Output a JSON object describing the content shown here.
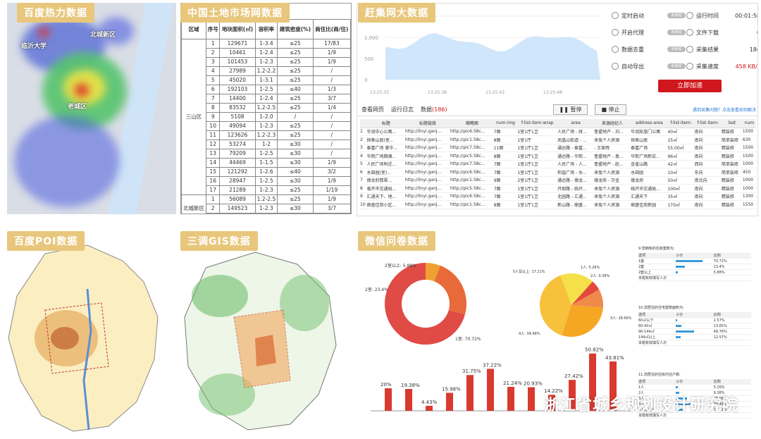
{
  "badges": {
    "heat": "百度热力数据",
    "land": "中国土地市场网数据",
    "crawl": "赶集网大数据",
    "poi": "百度POI数据",
    "gis": "三调GIS数据",
    "survey": "微信问卷数据"
  },
  "heat_labels": {
    "north": "北城新区",
    "uni": "临沂大学",
    "center": "老城区"
  },
  "land_table": {
    "headers": [
      "区域",
      "序号",
      "地块面积(㎡)",
      "容积率",
      "建筑密度(%)",
      "商住比(商/住)"
    ],
    "group1": "三山区",
    "group2": "北城新区",
    "rows1": [
      [
        "1",
        "129671",
        "1-3.4",
        "≤25",
        "17/83"
      ],
      [
        "2",
        "10461",
        "1-2.4",
        "≤25",
        "1/9"
      ],
      [
        "3",
        "101453",
        "1-2.3",
        "≤25",
        "1/9"
      ],
      [
        "4",
        "27989",
        "1.2-2.2",
        "≤25",
        "/"
      ],
      [
        "5",
        "45020",
        "1-3.1",
        "≤25",
        "/"
      ],
      [
        "6",
        "192103",
        "1-2.5",
        "≤40",
        "1/3"
      ],
      [
        "7",
        "14400",
        "1-2.4",
        "≤25",
        "3/7"
      ],
      [
        "8",
        "83532",
        "1.2-2.5",
        "≤25",
        "1/4"
      ],
      [
        "9",
        "5108",
        "1-2.0",
        "/",
        "/"
      ],
      [
        "10",
        "49094",
        "1-2.3",
        "≤25",
        "/"
      ],
      [
        "11",
        "123626",
        "1.2-2.3",
        "≤25",
        "/"
      ],
      [
        "12",
        "53274",
        "1-2",
        "≤30",
        "/"
      ],
      [
        "13",
        "79209",
        "1-2.5",
        "≤30",
        "/"
      ],
      [
        "14",
        "44469",
        "1-1.5",
        "≤30",
        "1/9"
      ],
      [
        "15",
        "121292",
        "1-2.6",
        "≤40",
        "3/2"
      ],
      [
        "16",
        "28947",
        "1-2.5",
        "≤30",
        "1/9"
      ],
      [
        "17",
        "21289",
        "1-2.3",
        "≤25",
        "1/19"
      ]
    ],
    "rows2": [
      [
        "1",
        "56089",
        "1.2-2.5",
        "≤25",
        "1/9"
      ],
      [
        "2",
        "149523",
        "1-2.3",
        "≤30",
        "3/7"
      ],
      [
        "3",
        "63766",
        "1-2.5",
        "≤25",
        "1/9"
      ]
    ]
  },
  "crawler": {
    "y_ticks": [
      "1,500",
      "1,000",
      "500",
      "0"
    ],
    "x_ticks": [
      "13:25:33",
      "13:25:38",
      "13:25:43",
      "13:25:48"
    ],
    "controls": [
      {
        "label": "定时启动",
        "toggle": "未启动"
      },
      {
        "label": "运行时间",
        "value": "00:01:58"
      },
      {
        "label": "开启代理",
        "toggle": "未启动"
      },
      {
        "label": "文件下载",
        "value": "0"
      },
      {
        "label": "数据去重",
        "toggle": "未启动"
      },
      {
        "label": "采集结果",
        "value": "186"
      },
      {
        "label": "自动导出",
        "toggle": "未启动"
      },
      {
        "label": "采集速度",
        "value": "458 KB/s"
      }
    ],
    "start_button": "立即加速",
    "tabs": [
      "查看网页",
      "运行日志",
      "数据"
    ],
    "data_count": "(186)",
    "pause": "暂停",
    "stop": "停止",
    "help": "遇到采集问题？点击查看如何解决",
    "table_headers": [
      "",
      "标题",
      "标题链接",
      "缩略图",
      "num-img",
      "f-list-item-wrap",
      "area",
      "来源经纪人",
      "address-area",
      "f-list-item-",
      "f-list-item-",
      "last",
      "num"
    ],
    "table_rows": [
      [
        "1",
        "华润中心公寓...",
        "http://linyi.ganj...",
        "http://pic6.58c...",
        "7图",
        "1室1厅1卫",
        "人民广场 - 财...",
        "鲁盟地产 - 刘...",
        "华润凯旋门公寓",
        "40㎡",
        "南向",
        "精装修",
        "1500"
      ],
      [
        "2",
        "探索山居(室...",
        "http://linyi.ganj...",
        "http://pic1.58c...",
        "8图",
        "1室1厅",
        "凤凰山街道 - ...",
        "来兔个人房源",
        "探索山居",
        "25㎡",
        "南向",
        "简单装修",
        "630"
      ],
      [
        "3",
        "泰富广场 豪华...",
        "http://linyi.ganj...",
        "http://pic7.58c...",
        "11图",
        "1室1厅1卫",
        "通达路 - 泰富...",
        "- 王家辉",
        "泰富广场",
        "55.00㎡",
        "南向",
        "精装修",
        "1500"
      ],
      [
        "4",
        "华熙广场期满...",
        "http://linyi.ganj...",
        "http://pic5.58c...",
        "8图",
        "1室1厅1卫",
        "通达路 - 华熙...",
        "鲁盟地产 - 袁...",
        "华熙广场新宏...",
        "96㎡",
        "南向",
        "精装修",
        "1500"
      ],
      [
        "5",
        "人民广场附近...",
        "http://linyi.ganj...",
        "http://pic7.58c...",
        "7图",
        "1室1厅1卫",
        "人民广场 - 人...",
        "鲁盟地产 - 赵...",
        "金雀山路",
        "42㎡",
        "西向",
        "简单装修",
        "1000"
      ],
      [
        "6",
        "水田园(室)...",
        "http://linyi.ganj...",
        "http://pic6.58c...",
        "7图",
        "1室1厅1卫",
        "和谐广场 - 水...",
        "来兔个人房源",
        "水田园",
        "10㎡",
        "东向",
        "简单装修",
        "450"
      ],
      [
        "7",
        "德龙府翡翠...",
        "http://linyi.ganj...",
        "http://pic1.58c...",
        "9图",
        "2室1厅1卫",
        "通达路 - 德龙...",
        "德龙府 - 万金",
        "德龙府",
        "50㎡",
        "南北向",
        "精装修",
        "1000"
      ],
      [
        "8",
        "临开市交通局...",
        "http://linyi.ganj...",
        "http://pic5.58c...",
        "7图",
        "1室1厅1卫",
        "开朋路 - 临开...",
        "来兔个人房源",
        "临开市交通局...",
        "100㎡",
        "南向",
        "精装修",
        "1000"
      ],
      [
        "9",
        "汇通天下、地...",
        "http://linyi.ganj...",
        "http://pic6.58c...",
        "7图",
        "1室1厅1卫",
        "北园路 - 汇通...",
        "来兔个人房源",
        "汇通天下",
        "35㎡",
        "南向",
        "精装修",
        "1300"
      ],
      [
        "10",
        "鼎盛佳苑小区...",
        "http://linyi.ganj...",
        "http://pic1.58c...",
        "8图",
        "1室1厅1卫",
        "新山路 - 鼎盛...",
        "来兔个人房源",
        "鼎盛佳苑新园",
        "170㎡",
        "南向",
        "精装修",
        "1550"
      ]
    ]
  },
  "survey": {
    "donut": {
      "labels": [
        "2室以上: 5.88%",
        "2室: 23.4%",
        "1室: 70.72%"
      ]
    },
    "pie": {
      "labels": [
        "5人及以上: 17.21%",
        "1人: 5.26%",
        "2人: 9.38%",
        "3人: 28.66%",
        "4人: 39.48%"
      ]
    },
    "bar_values": [
      "20%",
      "19.38%",
      "4.43%",
      "15.98%",
      "31.75%",
      "37.22%",
      "21.24%",
      "20.93%",
      "14.22%",
      "27.42%",
      "50.82%",
      "43.81%"
    ],
    "q1_title": "9.您拥有的住房套数为:",
    "q2_title": "10.您居住的住宅建筑面积为:",
    "q3_title": "11.您居住的住房内住户数:",
    "q_cols": [
      "选项",
      "小计",
      "比例"
    ],
    "q1_rows": [
      [
        "1套",
        "",
        "70.72%"
      ],
      [
        "2套",
        "",
        "23.4%"
      ],
      [
        "2套以上",
        "",
        "5.88%"
      ]
    ],
    "q2_rows": [
      [
        "60㎡以下",
        "",
        "2.57%"
      ],
      [
        "60-90㎡",
        "",
        "13.65%"
      ],
      [
        "90-144㎡",
        "",
        "48.76%"
      ],
      [
        "144㎡以上",
        "",
        "12.57%"
      ]
    ],
    "q3_rows": [
      [
        "1人",
        "",
        "5.26%"
      ],
      [
        "2人",
        "",
        "9.38%"
      ],
      [
        "3人",
        "",
        "28.66%"
      ],
      [
        "4人",
        "",
        "39.48%"
      ],
      [
        "5人及以上",
        "",
        "17.21%"
      ]
    ],
    "q_total": "本题有效填写人次"
  },
  "watermark": "浙江省城乡规划设计研究院",
  "colors": {
    "badge": "#e8c77c",
    "start": "#d0171d",
    "donut": "#e04b46",
    "pie": "#f5a623"
  }
}
